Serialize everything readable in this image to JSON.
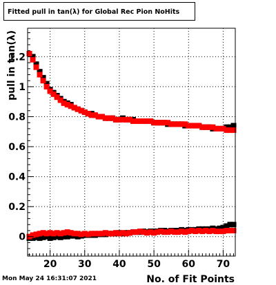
{
  "title": "Fitted pull in tan(λ) for Global Rec Pion NoHits",
  "timestamp": "Mon May 24 16:31:07 2021",
  "chart_data": {
    "type": "scatter",
    "title": "Fitted pull in tan(λ) for Global Rec Pion NoHits",
    "xlabel": "No. of Fit Points",
    "ylabel": "pull in tan(λ)",
    "xlim": [
      13.5,
      73.5
    ],
    "ylim": [
      -0.13,
      1.39
    ],
    "x_ticks": [
      20,
      30,
      40,
      50,
      60,
      70
    ],
    "y_ticks": [
      0,
      0.2,
      0.4,
      0.6,
      0.8,
      1,
      1.2
    ],
    "y_tick_labels": [
      "0",
      "0.2",
      "0.4",
      "0.6",
      "0.8",
      "1",
      "1.2"
    ],
    "grid": true,
    "colors": {
      "series1": "#000000",
      "series2": "#ff0000"
    },
    "series": [
      {
        "color": "#000000",
        "points": [
          [
            14,
            1.22
          ],
          [
            15,
            1.2
          ],
          [
            16,
            1.15
          ],
          [
            17,
            1.1
          ],
          [
            18,
            1.06
          ],
          [
            19,
            1.02
          ],
          [
            20,
            0.98
          ],
          [
            21,
            0.96
          ],
          [
            22,
            0.94
          ],
          [
            23,
            0.92
          ],
          [
            24,
            0.9
          ],
          [
            25,
            0.89
          ],
          [
            26,
            0.88
          ],
          [
            27,
            0.86
          ],
          [
            28,
            0.85
          ],
          [
            29,
            0.84
          ],
          [
            30,
            0.83
          ],
          [
            31,
            0.82
          ],
          [
            32,
            0.82
          ],
          [
            33,
            0.81
          ],
          [
            34,
            0.8
          ],
          [
            35,
            0.8
          ],
          [
            36,
            0.79
          ],
          [
            37,
            0.79
          ],
          [
            38,
            0.79
          ],
          [
            39,
            0.78
          ],
          [
            40,
            0.78
          ],
          [
            41,
            0.79
          ],
          [
            42,
            0.78
          ],
          [
            43,
            0.78
          ],
          [
            44,
            0.78
          ],
          [
            45,
            0.77
          ],
          [
            46,
            0.77
          ],
          [
            47,
            0.77
          ],
          [
            48,
            0.77
          ],
          [
            49,
            0.77
          ],
          [
            50,
            0.76
          ],
          [
            51,
            0.76
          ],
          [
            52,
            0.76
          ],
          [
            53,
            0.76
          ],
          [
            54,
            0.75
          ],
          [
            55,
            0.75
          ],
          [
            56,
            0.75
          ],
          [
            57,
            0.75
          ],
          [
            58,
            0.75
          ],
          [
            59,
            0.74
          ],
          [
            60,
            0.74
          ],
          [
            61,
            0.74
          ],
          [
            62,
            0.74
          ],
          [
            63,
            0.74
          ],
          [
            64,
            0.73
          ],
          [
            65,
            0.73
          ],
          [
            66,
            0.73
          ],
          [
            67,
            0.72
          ],
          [
            68,
            0.72
          ],
          [
            69,
            0.72
          ],
          [
            70,
            0.72
          ],
          [
            71,
            0.73
          ],
          [
            72,
            0.73
          ],
          [
            73,
            0.74
          ]
        ]
      },
      {
        "color": "#ff0000",
        "points": [
          [
            14,
            1.22
          ],
          [
            15,
            1.18
          ],
          [
            16,
            1.13
          ],
          [
            17,
            1.08
          ],
          [
            18,
            1.04
          ],
          [
            19,
            1.0
          ],
          [
            20,
            0.97
          ],
          [
            21,
            0.95
          ],
          [
            22,
            0.93
          ],
          [
            23,
            0.91
          ],
          [
            24,
            0.89
          ],
          [
            25,
            0.88
          ],
          [
            26,
            0.87
          ],
          [
            27,
            0.86
          ],
          [
            28,
            0.85
          ],
          [
            29,
            0.84
          ],
          [
            30,
            0.83
          ],
          [
            31,
            0.82
          ],
          [
            32,
            0.81
          ],
          [
            33,
            0.81
          ],
          [
            34,
            0.8
          ],
          [
            35,
            0.8
          ],
          [
            36,
            0.79
          ],
          [
            37,
            0.79
          ],
          [
            38,
            0.79
          ],
          [
            39,
            0.78
          ],
          [
            40,
            0.78
          ],
          [
            41,
            0.78
          ],
          [
            42,
            0.78
          ],
          [
            43,
            0.78
          ],
          [
            44,
            0.77
          ],
          [
            45,
            0.77
          ],
          [
            46,
            0.77
          ],
          [
            47,
            0.77
          ],
          [
            48,
            0.77
          ],
          [
            49,
            0.77
          ],
          [
            50,
            0.76
          ],
          [
            51,
            0.76
          ],
          [
            52,
            0.76
          ],
          [
            53,
            0.76
          ],
          [
            54,
            0.76
          ],
          [
            55,
            0.75
          ],
          [
            56,
            0.75
          ],
          [
            57,
            0.75
          ],
          [
            58,
            0.75
          ],
          [
            59,
            0.75
          ],
          [
            60,
            0.74
          ],
          [
            61,
            0.74
          ],
          [
            62,
            0.74
          ],
          [
            63,
            0.74
          ],
          [
            64,
            0.73
          ],
          [
            65,
            0.73
          ],
          [
            66,
            0.73
          ],
          [
            67,
            0.73
          ],
          [
            68,
            0.72
          ],
          [
            69,
            0.72
          ],
          [
            70,
            0.72
          ],
          [
            71,
            0.71
          ],
          [
            72,
            0.71
          ],
          [
            73,
            0.71
          ]
        ]
      },
      {
        "color": "#000000",
        "points": [
          [
            14,
            -0.01
          ],
          [
            15,
            -0.01
          ],
          [
            16,
            -0.005
          ],
          [
            17,
            -0.01
          ],
          [
            18,
            -0.005
          ],
          [
            19,
            0.0
          ],
          [
            20,
            -0.01
          ],
          [
            21,
            -0.005
          ],
          [
            22,
            0.0
          ],
          [
            23,
            -0.005
          ],
          [
            24,
            0.0
          ],
          [
            25,
            0.0
          ],
          [
            26,
            0.005
          ],
          [
            27,
            0.005
          ],
          [
            28,
            0.0
          ],
          [
            29,
            0.005
          ],
          [
            30,
            0.01
          ],
          [
            31,
            0.01
          ],
          [
            32,
            0.01
          ],
          [
            33,
            0.01
          ],
          [
            34,
            0.015
          ],
          [
            35,
            0.015
          ],
          [
            36,
            0.015
          ],
          [
            37,
            0.02
          ],
          [
            38,
            0.02
          ],
          [
            39,
            0.02
          ],
          [
            40,
            0.025
          ],
          [
            41,
            0.02
          ],
          [
            42,
            0.025
          ],
          [
            43,
            0.025
          ],
          [
            44,
            0.03
          ],
          [
            45,
            0.03
          ],
          [
            46,
            0.03
          ],
          [
            47,
            0.035
          ],
          [
            48,
            0.03
          ],
          [
            49,
            0.035
          ],
          [
            50,
            0.035
          ],
          [
            51,
            0.035
          ],
          [
            52,
            0.04
          ],
          [
            53,
            0.04
          ],
          [
            54,
            0.035
          ],
          [
            55,
            0.04
          ],
          [
            56,
            0.04
          ],
          [
            57,
            0.04
          ],
          [
            58,
            0.045
          ],
          [
            59,
            0.04
          ],
          [
            60,
            0.045
          ],
          [
            61,
            0.045
          ],
          [
            62,
            0.045
          ],
          [
            63,
            0.05
          ],
          [
            64,
            0.05
          ],
          [
            65,
            0.05
          ],
          [
            66,
            0.05
          ],
          [
            67,
            0.055
          ],
          [
            68,
            0.05
          ],
          [
            69,
            0.055
          ],
          [
            70,
            0.06
          ],
          [
            71,
            0.07
          ],
          [
            72,
            0.08
          ],
          [
            73,
            0.08
          ]
        ]
      },
      {
        "color": "#ff0000",
        "points": [
          [
            14,
            0.0
          ],
          [
            15,
            0.01
          ],
          [
            16,
            0.015
          ],
          [
            17,
            0.02
          ],
          [
            18,
            0.025
          ],
          [
            19,
            0.02
          ],
          [
            20,
            0.025
          ],
          [
            21,
            0.02
          ],
          [
            22,
            0.025
          ],
          [
            23,
            0.02
          ],
          [
            24,
            0.025
          ],
          [
            25,
            0.03
          ],
          [
            26,
            0.025
          ],
          [
            27,
            0.02
          ],
          [
            28,
            0.02
          ],
          [
            29,
            0.015
          ],
          [
            30,
            0.02
          ],
          [
            31,
            0.015
          ],
          [
            32,
            0.02
          ],
          [
            33,
            0.02
          ],
          [
            34,
            0.02
          ],
          [
            35,
            0.02
          ],
          [
            36,
            0.025
          ],
          [
            37,
            0.02
          ],
          [
            38,
            0.02
          ],
          [
            39,
            0.025
          ],
          [
            40,
            0.02
          ],
          [
            41,
            0.025
          ],
          [
            42,
            0.02
          ],
          [
            43,
            0.025
          ],
          [
            44,
            0.03
          ],
          [
            45,
            0.03
          ],
          [
            46,
            0.035
          ],
          [
            47,
            0.03
          ],
          [
            48,
            0.025
          ],
          [
            49,
            0.03
          ],
          [
            50,
            0.025
          ],
          [
            51,
            0.03
          ],
          [
            52,
            0.035
          ],
          [
            53,
            0.03
          ],
          [
            54,
            0.03
          ],
          [
            55,
            0.035
          ],
          [
            56,
            0.03
          ],
          [
            57,
            0.03
          ],
          [
            58,
            0.035
          ],
          [
            59,
            0.03
          ],
          [
            60,
            0.035
          ],
          [
            61,
            0.04
          ],
          [
            62,
            0.035
          ],
          [
            63,
            0.04
          ],
          [
            64,
            0.035
          ],
          [
            65,
            0.04
          ],
          [
            66,
            0.035
          ],
          [
            67,
            0.04
          ],
          [
            68,
            0.035
          ],
          [
            69,
            0.035
          ],
          [
            70,
            0.035
          ],
          [
            71,
            0.04
          ],
          [
            72,
            0.04
          ],
          [
            73,
            0.04
          ]
        ]
      }
    ]
  }
}
